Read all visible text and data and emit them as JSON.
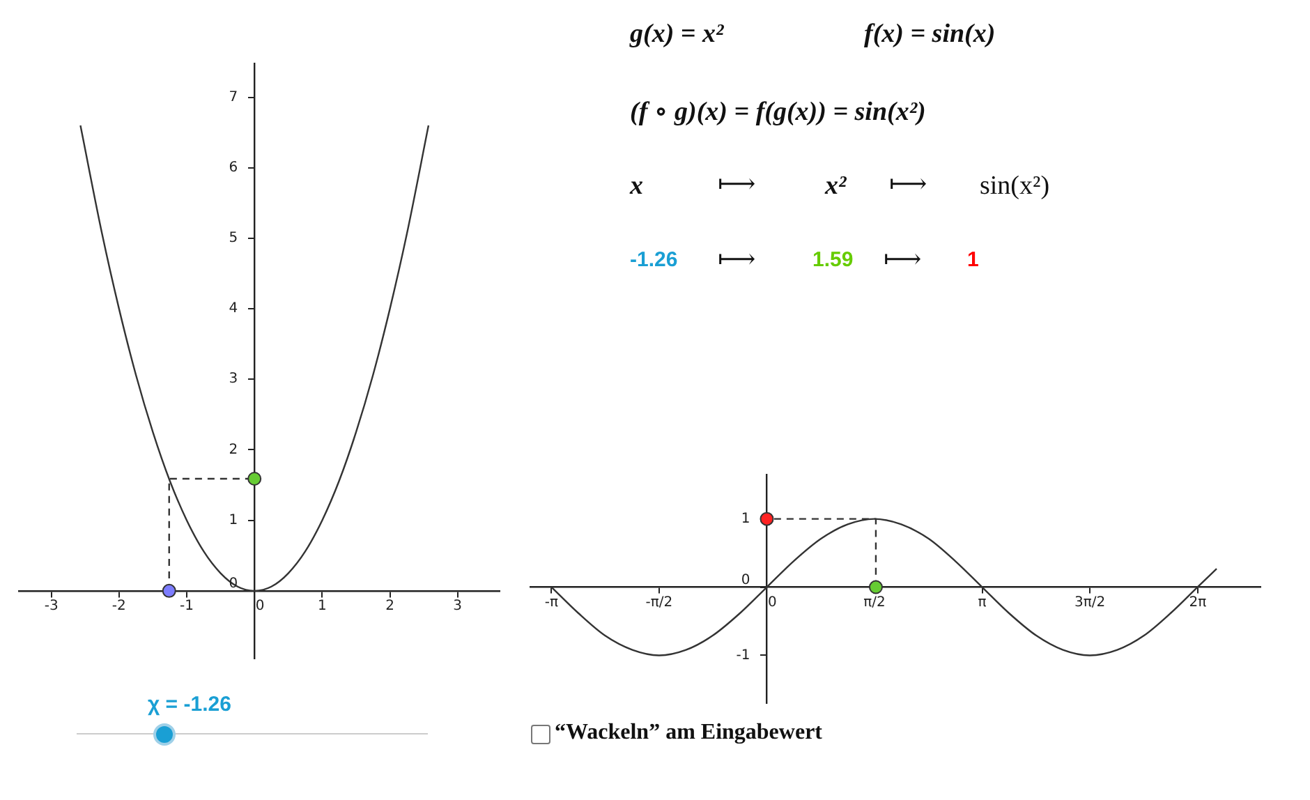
{
  "chart_data": [
    {
      "type": "line",
      "xlim": [
        -3.48,
        3.62
      ],
      "ylim": [
        -0.96,
        7.48
      ],
      "xticks": [
        -3,
        -2,
        -1,
        0,
        1,
        2,
        3
      ],
      "yticks": [
        0,
        1,
        2,
        3,
        4,
        5,
        6,
        7
      ],
      "grid": false,
      "legend": false,
      "marker": "none",
      "series": [
        {
          "color": "#333333",
          "x": [
            -2.57,
            -2.25,
            -2,
            -1.75,
            -1.5,
            -1.25,
            -1,
            -0.75,
            -0.5,
            -0.25,
            0,
            0.25,
            0.5,
            0.75,
            1,
            1.25,
            1.5,
            1.75,
            2,
            2.25,
            2.57
          ],
          "values": [
            6.6,
            5.06,
            4,
            3.06,
            2.25,
            1.56,
            1,
            0.56,
            0.25,
            0.06,
            0,
            0.06,
            0.25,
            0.56,
            1,
            1.56,
            2.25,
            3.06,
            4,
            5.06,
            6.6
          ]
        },
        {
          "type": "line",
          "line_style": "dashed",
          "color": "#333333",
          "x": [
            -1.26,
            -1.26,
            0
          ],
          "values": [
            0,
            1.59,
            1.59
          ]
        },
        {
          "type": "scatter",
          "marker": "circle",
          "colors": [
            "#7d7dff",
            "#66cc33"
          ],
          "x": [
            -1.26,
            0
          ],
          "values": [
            0,
            1.59
          ]
        }
      ]
    },
    {
      "type": "line",
      "xlim": [
        -3.45,
        7.2
      ],
      "ylim": [
        -1.7,
        1.65
      ],
      "xticks": [
        {
          "value": -3.1416,
          "label": "-π"
        },
        {
          "value": -1.5708,
          "label": "-π/2"
        },
        0,
        {
          "value": 1.5708,
          "label": "π/2"
        },
        {
          "value": 3.1416,
          "label": "π"
        },
        {
          "value": 4.7124,
          "label": "3π/2"
        },
        {
          "value": 6.2832,
          "label": "2π"
        }
      ],
      "yticks": [
        -1,
        0,
        1
      ],
      "grid": false,
      "legend": false,
      "marker": "none",
      "series": [
        {
          "color": "#333333",
          "x": [
            -3.14,
            -2.75,
            -2.36,
            -1.96,
            -1.57,
            -1.18,
            -0.79,
            -0.39,
            0,
            0.39,
            0.79,
            1.18,
            1.57,
            1.96,
            2.36,
            2.75,
            3.14,
            3.53,
            3.93,
            4.32,
            4.71,
            5.11,
            5.5,
            5.89,
            6.28,
            6.56
          ],
          "values": [
            0,
            -0.38,
            -0.71,
            -0.92,
            -1,
            -0.92,
            -0.71,
            -0.38,
            0,
            0.38,
            0.71,
            0.92,
            1,
            0.92,
            0.71,
            0.38,
            0,
            -0.38,
            -0.71,
            -0.92,
            -1,
            -0.92,
            -0.71,
            -0.38,
            0,
            0.27
          ]
        },
        {
          "type": "line",
          "line_style": "dashed",
          "color": "#333333",
          "x": [
            1.59,
            1.59,
            0
          ],
          "values": [
            0,
            1,
            1
          ]
        },
        {
          "type": "scatter",
          "marker": "circle",
          "colors": [
            "#66cc33",
            "#ff2222"
          ],
          "x": [
            1.59,
            0
          ],
          "values": [
            0,
            1
          ]
        }
      ]
    },
    {
      "type": "other",
      "annotations": [
        "g(x) = x²",
        "f(x) = sin(x)",
        "(f ∘ g)(x) = f(g(x)) = sin(x²)",
        "x",
        "⟼",
        "x²",
        "⟼",
        "sin(x²)",
        "-1.26",
        "⟼",
        "1.59",
        "⟼",
        "1",
        "χ = -1.26",
        "“Wackeln” am Eingabewert"
      ]
    }
  ]
}
